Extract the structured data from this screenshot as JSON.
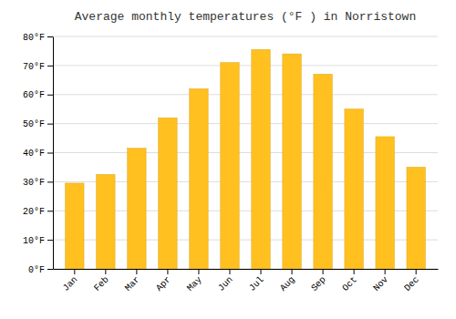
{
  "chart_data": {
    "type": "bar",
    "title": "Average monthly temperatures (°F ) in Norristown",
    "categories": [
      "Jan",
      "Feb",
      "Mar",
      "Apr",
      "May",
      "Jun",
      "Jul",
      "Aug",
      "Sep",
      "Oct",
      "Nov",
      "Dec"
    ],
    "values": [
      29.5,
      32.5,
      41.5,
      52.0,
      62.0,
      71.0,
      75.5,
      74.0,
      67.0,
      55.0,
      45.5,
      35.0
    ],
    "color": "#FFC020",
    "ylim": [
      0,
      80
    ],
    "yticks": [
      {
        "value": 0,
        "label": "0°F"
      },
      {
        "value": 10,
        "label": "10°F"
      },
      {
        "value": 20,
        "label": "20°F"
      },
      {
        "value": 30,
        "label": "30°F"
      },
      {
        "value": 40,
        "label": "40°F"
      },
      {
        "value": 50,
        "label": "50°F"
      },
      {
        "value": 60,
        "label": "60°F"
      },
      {
        "value": 70,
        "label": "70°F"
      },
      {
        "value": 80,
        "label": "80°F"
      }
    ],
    "grid": true
  }
}
